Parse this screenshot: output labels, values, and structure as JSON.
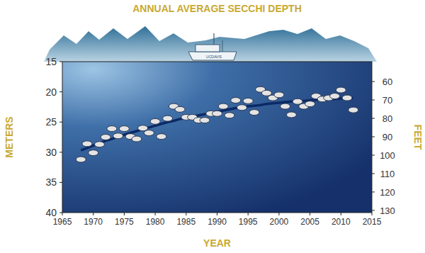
{
  "chart_data": {
    "type": "scatter",
    "title": "ANNUAL AVERAGE SECCHI DEPTH",
    "xlabel": "YEAR",
    "ylabel": "METERS",
    "y2label": "FEET",
    "annotations": [
      "UCDAVIS"
    ],
    "x": [
      1968,
      1969,
      1970,
      1971,
      1972,
      1973,
      1974,
      1975,
      1976,
      1977,
      1978,
      1979,
      1980,
      1981,
      1982,
      1983,
      1984,
      1985,
      1986,
      1987,
      1988,
      1989,
      1990,
      1991,
      1992,
      1993,
      1994,
      1995,
      1996,
      1997,
      1998,
      1999,
      2000,
      2001,
      2002,
      2003,
      2004,
      2005,
      2006,
      2007,
      2008,
      2009,
      2010,
      2011,
      2012
    ],
    "series": [
      {
        "type": "scatter",
        "marker": "ellipse",
        "color": "#e4e4e4",
        "values": [
          31.2,
          28.6,
          30.1,
          28.7,
          27.5,
          26.1,
          27.3,
          26.1,
          27.4,
          27.8,
          26.0,
          26.8,
          24.9,
          27.4,
          24.4,
          22.4,
          22.9,
          24.2,
          24.2,
          24.7,
          24.7,
          23.6,
          23.6,
          22.4,
          23.9,
          21.4,
          22.6,
          21.5,
          23.4,
          19.6,
          20.2,
          21.0,
          20.5,
          22.4,
          23.8,
          21.6,
          22.4,
          22.0,
          20.7,
          21.2,
          21.0,
          20.7,
          19.7,
          21.0,
          23.0
        ]
      },
      {
        "type": "line",
        "line_style": "solid",
        "color": "#0b2a66",
        "values": [
          29.7,
          29.3,
          28.9,
          28.5,
          28.1,
          27.8,
          27.4,
          27.1,
          26.8,
          26.5,
          26.2,
          25.9,
          25.6,
          25.3,
          25.0,
          24.8,
          24.5,
          24.3,
          24.1,
          23.9,
          23.7,
          23.5,
          23.3,
          23.1,
          22.9,
          22.7,
          22.6,
          22.4,
          22.3,
          22.2,
          22.0,
          21.9,
          21.8,
          21.7,
          21.6,
          21.5,
          21.5,
          21.4,
          21.3,
          21.3,
          21.2,
          21.2,
          21.1,
          21.1,
          21.0
        ]
      }
    ],
    "xlim": [
      1965,
      2015
    ],
    "xticks": [
      1965,
      1970,
      1975,
      1980,
      1985,
      1990,
      1995,
      2000,
      2005,
      2010,
      2015
    ],
    "ylim": [
      40,
      15
    ],
    "yticks": [
      15,
      20,
      25,
      30,
      35,
      40
    ],
    "y2lim": [
      131.2,
      49.2
    ],
    "y2ticks": [
      60,
      70,
      80,
      90,
      100,
      110,
      120,
      130
    ],
    "grid": false
  }
}
